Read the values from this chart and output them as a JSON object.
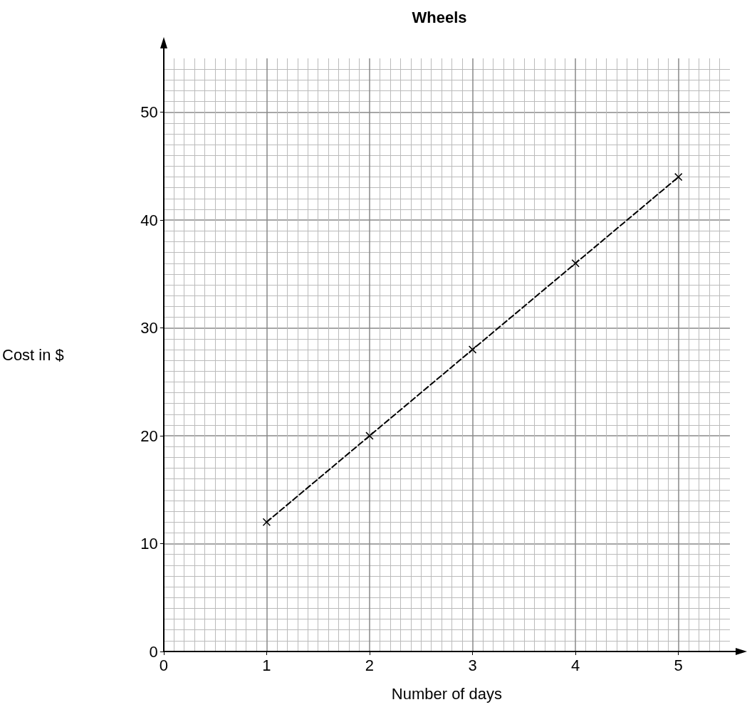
{
  "chart_data": {
    "type": "line",
    "title": "Wheels",
    "xlabel": "Number of days",
    "ylabel": "Cost in $",
    "x": [
      1,
      2,
      3,
      4,
      5
    ],
    "series": [
      {
        "color": "#000000",
        "values": [
          12,
          20,
          28,
          36,
          44
        ]
      }
    ],
    "xlim": [
      0,
      5.5
    ],
    "xticks": [
      0,
      1,
      2,
      3,
      4,
      5
    ],
    "ylim": [
      0,
      55
    ],
    "yticks": [
      0,
      10,
      20,
      30,
      40,
      50
    ],
    "grid": true,
    "marker": "cross",
    "line_style": "dashed"
  }
}
